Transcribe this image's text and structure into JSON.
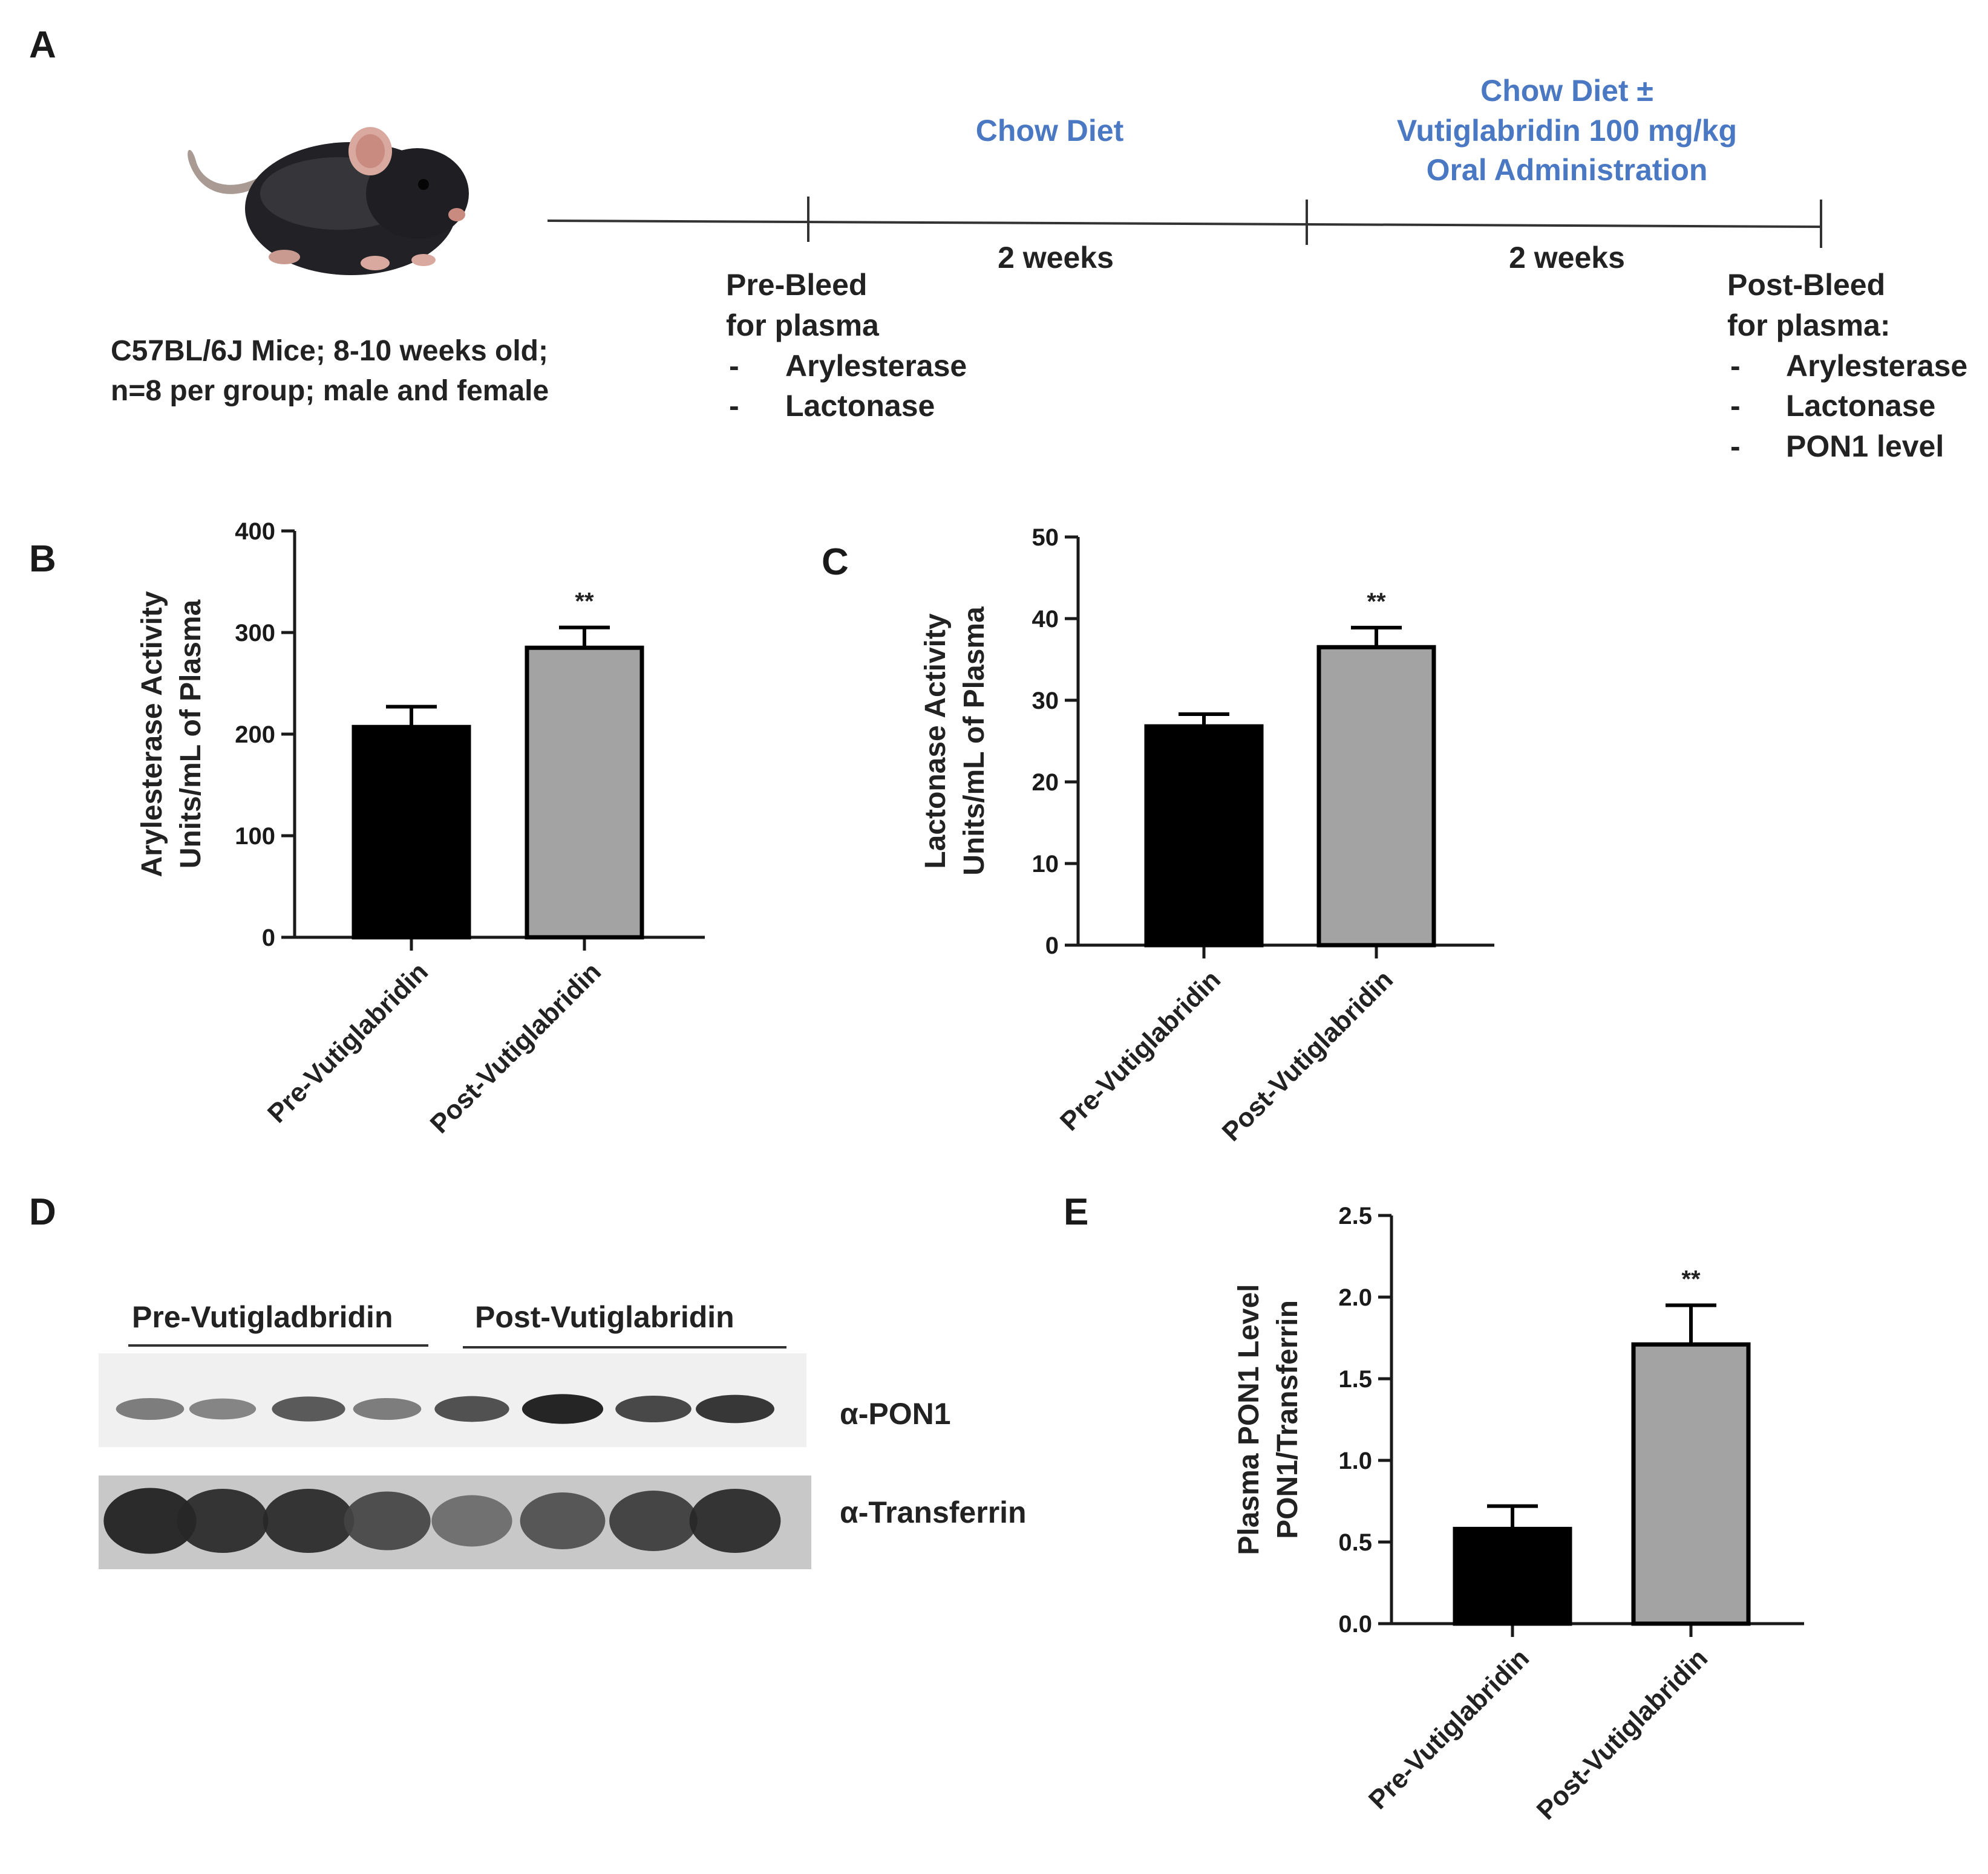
{
  "panel_a": {
    "letter": "A",
    "mouse_caption": [
      "C57BL/6J Mice;  8-10 weeks old;",
      "n=8 per group;  male and female"
    ],
    "phase1_label": "Chow Diet",
    "phase2_label": [
      "Chow Diet ±",
      "Vutiglabridin  100 mg/kg",
      "Oral Administration"
    ],
    "duration1": "2 weeks",
    "duration2": "2 weeks",
    "pre_bleed": {
      "title": [
        "Pre-Bleed",
        "for plasma"
      ],
      "items": [
        "Arylesterase",
        "Lactonase"
      ]
    },
    "post_bleed": {
      "title": [
        "Post-Bleed",
        "for plasma:"
      ],
      "items": [
        "Arylesterase",
        "Lactonase",
        "PON1 level"
      ]
    },
    "colors": {
      "phase_text": "#4a78c2"
    }
  },
  "panel_d": {
    "letter": "D",
    "group1_label": "Pre-Vutigladbridin",
    "group2_label": "Post-Vutiglabridin",
    "row1_label": "α-PON1",
    "row2_label": "α-Transferrin",
    "pon1_band_intensity": [
      0.45,
      0.4,
      0.65,
      0.45,
      0.7,
      0.95,
      0.75,
      0.85
    ],
    "transferrin_band_intensity": [
      0.9,
      0.85,
      0.85,
      0.7,
      0.5,
      0.65,
      0.75,
      0.85
    ]
  },
  "chart_data": [
    {
      "panel": "B",
      "type": "bar",
      "categories": [
        "Pre-Vutiglabridin",
        "Post-Vutiglabridin"
      ],
      "values": [
        207,
        285
      ],
      "error": [
        20,
        20
      ],
      "significance": [
        "",
        "**"
      ],
      "ylabel": [
        "Arylesterase Activity",
        "Units/mL of Plasma"
      ],
      "xlabel": "",
      "ylim": [
        0,
        400
      ],
      "yticks": [
        "0",
        "100",
        "200",
        "300",
        "400"
      ],
      "colors": [
        "#000000",
        "#a3a3a3"
      ]
    },
    {
      "panel": "C",
      "type": "bar",
      "categories": [
        "Pre-Vutiglabridin",
        "Post-Vutiglabridin"
      ],
      "values": [
        26.8,
        36.5
      ],
      "error": [
        1.5,
        2.4
      ],
      "significance": [
        "",
        "**"
      ],
      "ylabel": [
        "Lactonase Activity",
        "Units/mL of Plasma"
      ],
      "xlabel": "",
      "ylim": [
        0,
        50
      ],
      "yticks": [
        "0",
        "10",
        "20",
        "30",
        "40",
        "50"
      ],
      "colors": [
        "#000000",
        "#a3a3a3"
      ]
    },
    {
      "panel": "E",
      "type": "bar",
      "categories": [
        "Pre-Vutiglabridin",
        "Post-Vutiglabridin"
      ],
      "values": [
        0.58,
        1.71
      ],
      "error": [
        0.14,
        0.24
      ],
      "significance": [
        "",
        "**"
      ],
      "ylabel": [
        "Plasma PON1 Level",
        "PON1/Transferrin"
      ],
      "xlabel": "",
      "ylim": [
        0,
        2.5
      ],
      "yticks": [
        "0.0",
        "0.5",
        "1.0",
        "1.5",
        "2.0",
        "2.5"
      ],
      "colors": [
        "#000000",
        "#a3a3a3"
      ]
    }
  ]
}
